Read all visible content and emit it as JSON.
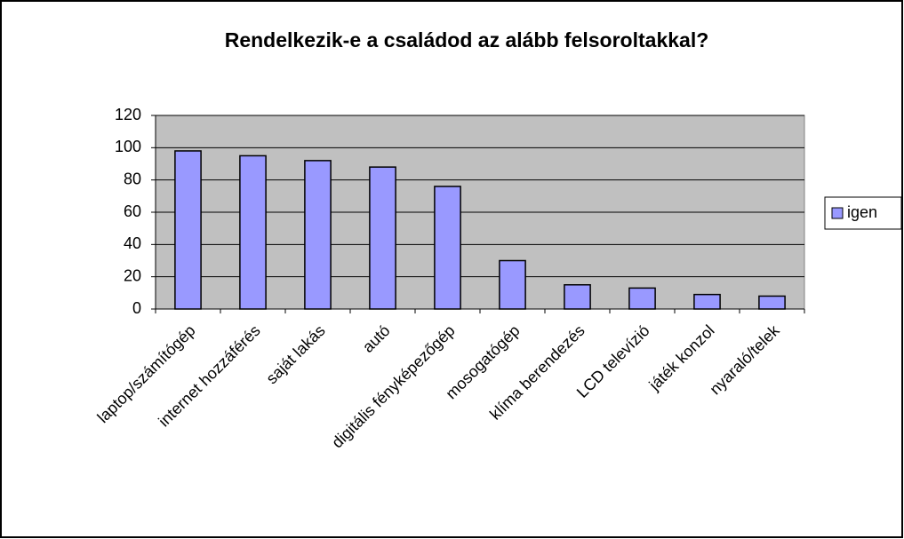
{
  "chart_data": {
    "type": "bar",
    "title": "Rendelkezik-e a családod az alább felsoroltakkal?",
    "categories": [
      "laptop/számítógép",
      "internet hozzáférés",
      "saját lakás",
      "autó",
      "digitális fényképezőgép",
      "mosogatógép",
      "klíma berendezés",
      "LCD televízió",
      "játék konzol",
      "nyaraló/telek"
    ],
    "series": [
      {
        "name": "igen",
        "color": "#9999ff",
        "values": [
          98,
          95,
          92,
          88,
          76,
          30,
          15,
          13,
          9,
          8
        ]
      }
    ],
    "ylim": [
      0,
      120
    ],
    "yticks": [
      0,
      20,
      40,
      60,
      80,
      100,
      120
    ],
    "grid": true
  }
}
